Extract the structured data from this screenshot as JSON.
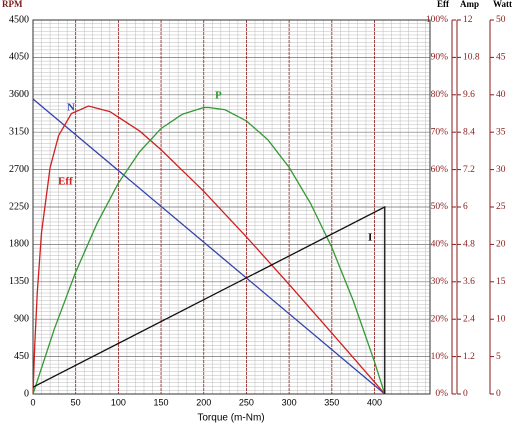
{
  "chart_data": {
    "type": "line",
    "xlabel": "Torque (m-Nm)",
    "ylabel": "RPM",
    "y2label": "Eff",
    "y3label": "Amp",
    "y4label": "Watt",
    "xlim": [
      0,
      465
    ],
    "xticks": [
      0,
      50,
      100,
      150,
      200,
      250,
      300,
      350,
      400
    ],
    "ylim": [
      0,
      4500
    ],
    "yticks": [
      0,
      450,
      900,
      1350,
      1800,
      2250,
      2700,
      3150,
      3600,
      4050,
      4500
    ],
    "y2lim": [
      0,
      100
    ],
    "y2ticks": [
      {
        "value": 0,
        "label": "0%"
      },
      {
        "value": 10,
        "label": "10%"
      },
      {
        "value": 20,
        "label": "20%"
      },
      {
        "value": 30,
        "label": "30%"
      },
      {
        "value": 40,
        "label": "40%"
      },
      {
        "value": 50,
        "label": "50%"
      },
      {
        "value": 60,
        "label": "60%"
      },
      {
        "value": 70,
        "label": "70%"
      },
      {
        "value": 80,
        "label": "80%"
      },
      {
        "value": 90,
        "label": "90%"
      },
      {
        "value": 100,
        "label": "100%"
      }
    ],
    "y3lim": [
      0,
      12
    ],
    "y3ticks": [
      0,
      1.2,
      2.4,
      3.6,
      4.8,
      6,
      7.2,
      8.4,
      9.6,
      10.8,
      12
    ],
    "y4lim": [
      0,
      50
    ],
    "y4ticks": [
      0,
      5,
      10,
      15,
      20,
      25,
      30,
      35,
      40,
      45,
      50
    ],
    "grid": true,
    "series": [
      {
        "name": "N",
        "color": "#3344aa",
        "axis": "y",
        "x": [
          0,
          412
        ],
        "values": [
          3550,
          0
        ]
      },
      {
        "name": "Eff",
        "color": "#d02020",
        "axis": "y2",
        "x": [
          0,
          2,
          5,
          10,
          20,
          30,
          45,
          65,
          90,
          125,
          150,
          200,
          250,
          300,
          350,
          400,
          412
        ],
        "values": [
          0,
          12.8,
          27.1,
          43.2,
          60.5,
          69.1,
          75.0,
          77.0,
          75.5,
          70.3,
          65.3,
          54.2,
          42.0,
          29.3,
          16.3,
          3.2,
          0
        ]
      },
      {
        "name": "P",
        "color": "#339933",
        "axis": "y4",
        "x": [
          0,
          25,
          50,
          75,
          100,
          125,
          150,
          175,
          200,
          206,
          225,
          250,
          275,
          300,
          325,
          350,
          375,
          400,
          412
        ],
        "values": [
          0,
          8.7,
          16.3,
          22.8,
          28.2,
          32.4,
          35.5,
          37.4,
          38.3,
          38.3,
          38.0,
          36.5,
          34.0,
          30.3,
          25.5,
          19.6,
          12.5,
          4.3,
          0
        ]
      },
      {
        "name": "I",
        "color": "#111111",
        "axis": "y3",
        "x": [
          0,
          412,
          412
        ],
        "values": [
          0.22,
          6,
          0
        ]
      }
    ]
  }
}
